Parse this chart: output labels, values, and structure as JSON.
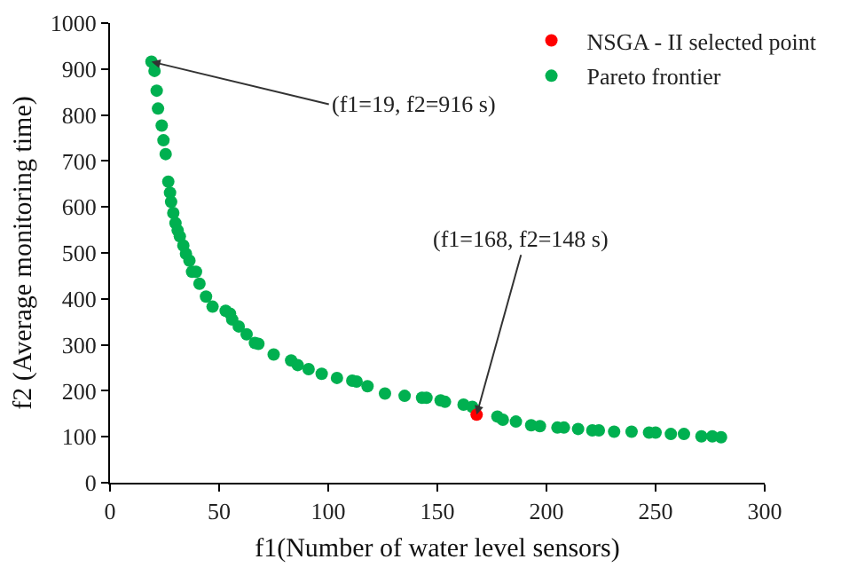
{
  "chart_data": {
    "type": "scatter",
    "xlabel": "f1(Number of water level sensors)",
    "ylabel": "f2 (Average monitoring time)",
    "xlim": [
      0,
      300
    ],
    "xticks": [
      0,
      50,
      100,
      150,
      200,
      250,
      300
    ],
    "ylim": [
      0,
      1000
    ],
    "yticks": [
      0,
      100,
      200,
      300,
      400,
      500,
      600,
      700,
      800,
      900,
      1000
    ],
    "grid": false,
    "legend": "top right",
    "marker": "circle",
    "series": [
      {
        "name": "NSGA - II selected point",
        "color": "#ff0000",
        "x": [
          168
        ],
        "values": [
          148
        ]
      },
      {
        "name": "Pareto frontier",
        "color": "#00b050",
        "x": [
          19,
          20.4,
          21.4,
          22,
          23.7,
          24.5,
          25.5,
          26.7,
          27.5,
          28,
          29,
          30,
          31,
          32,
          33.6,
          34.8,
          36.4,
          37.6,
          39.4,
          41,
          44,
          47,
          53,
          55,
          56,
          59,
          62.6,
          66.4,
          68,
          75,
          83,
          86,
          91,
          97,
          104,
          111,
          113,
          118,
          126,
          135,
          143,
          145,
          151.5,
          153.5,
          162,
          166,
          177.5,
          180,
          186,
          193,
          197,
          205,
          208,
          214.5,
          221,
          224,
          231,
          239,
          247,
          250,
          257,
          263,
          271,
          276,
          280
        ],
        "values": [
          916,
          896,
          853,
          814,
          777,
          745,
          715,
          655,
          631,
          611,
          587,
          565,
          549,
          536,
          516,
          498,
          483,
          459,
          459,
          433,
          405,
          383,
          374,
          368,
          355,
          340,
          323,
          304,
          302,
          279,
          266,
          256,
          247,
          237,
          228,
          222,
          220,
          210,
          194,
          189,
          185,
          185,
          179,
          176,
          170,
          165,
          144,
          137,
          133,
          125,
          123,
          120,
          120,
          117,
          114,
          114,
          111,
          111,
          109,
          109,
          106,
          106,
          101,
          101,
          99
        ]
      }
    ],
    "annotations": [
      {
        "text": "(f1=19, f2=916 s)",
        "x": 19,
        "y": 916
      },
      {
        "text": "(f1=168, f2=148 s)",
        "x": 168,
        "y": 148
      }
    ]
  }
}
